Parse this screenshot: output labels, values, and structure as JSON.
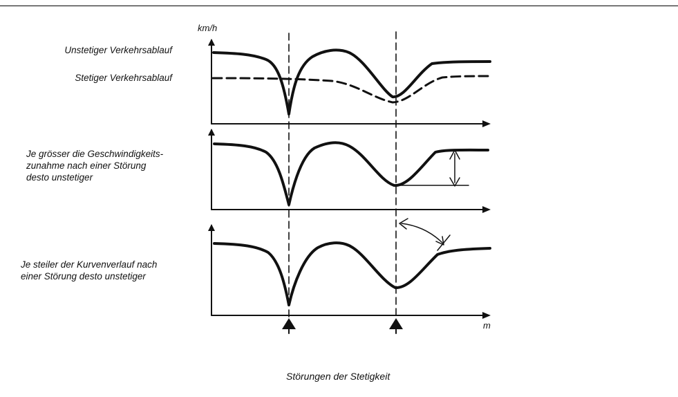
{
  "unit_speed": "km/h",
  "unit_distance": "m",
  "panel1": {
    "label_unsteady": "Unstetiger Verkehrsablauf",
    "label_steady": "Stetiger Verkehrsablauf"
  },
  "panel2": {
    "label_lines": [
      "Je grösser die Geschwindigkeits-",
      "zunahme nach einer Störung",
      "desto unstetiger"
    ]
  },
  "panel3": {
    "label_lines": [
      "Je steiler der Kurvenverlauf  nach",
      "einer Störung desto unstetiger"
    ]
  },
  "caption": "Störungen der Stetigkeit",
  "colors": {
    "ink": "#111111",
    "background": "#ffffff"
  }
}
